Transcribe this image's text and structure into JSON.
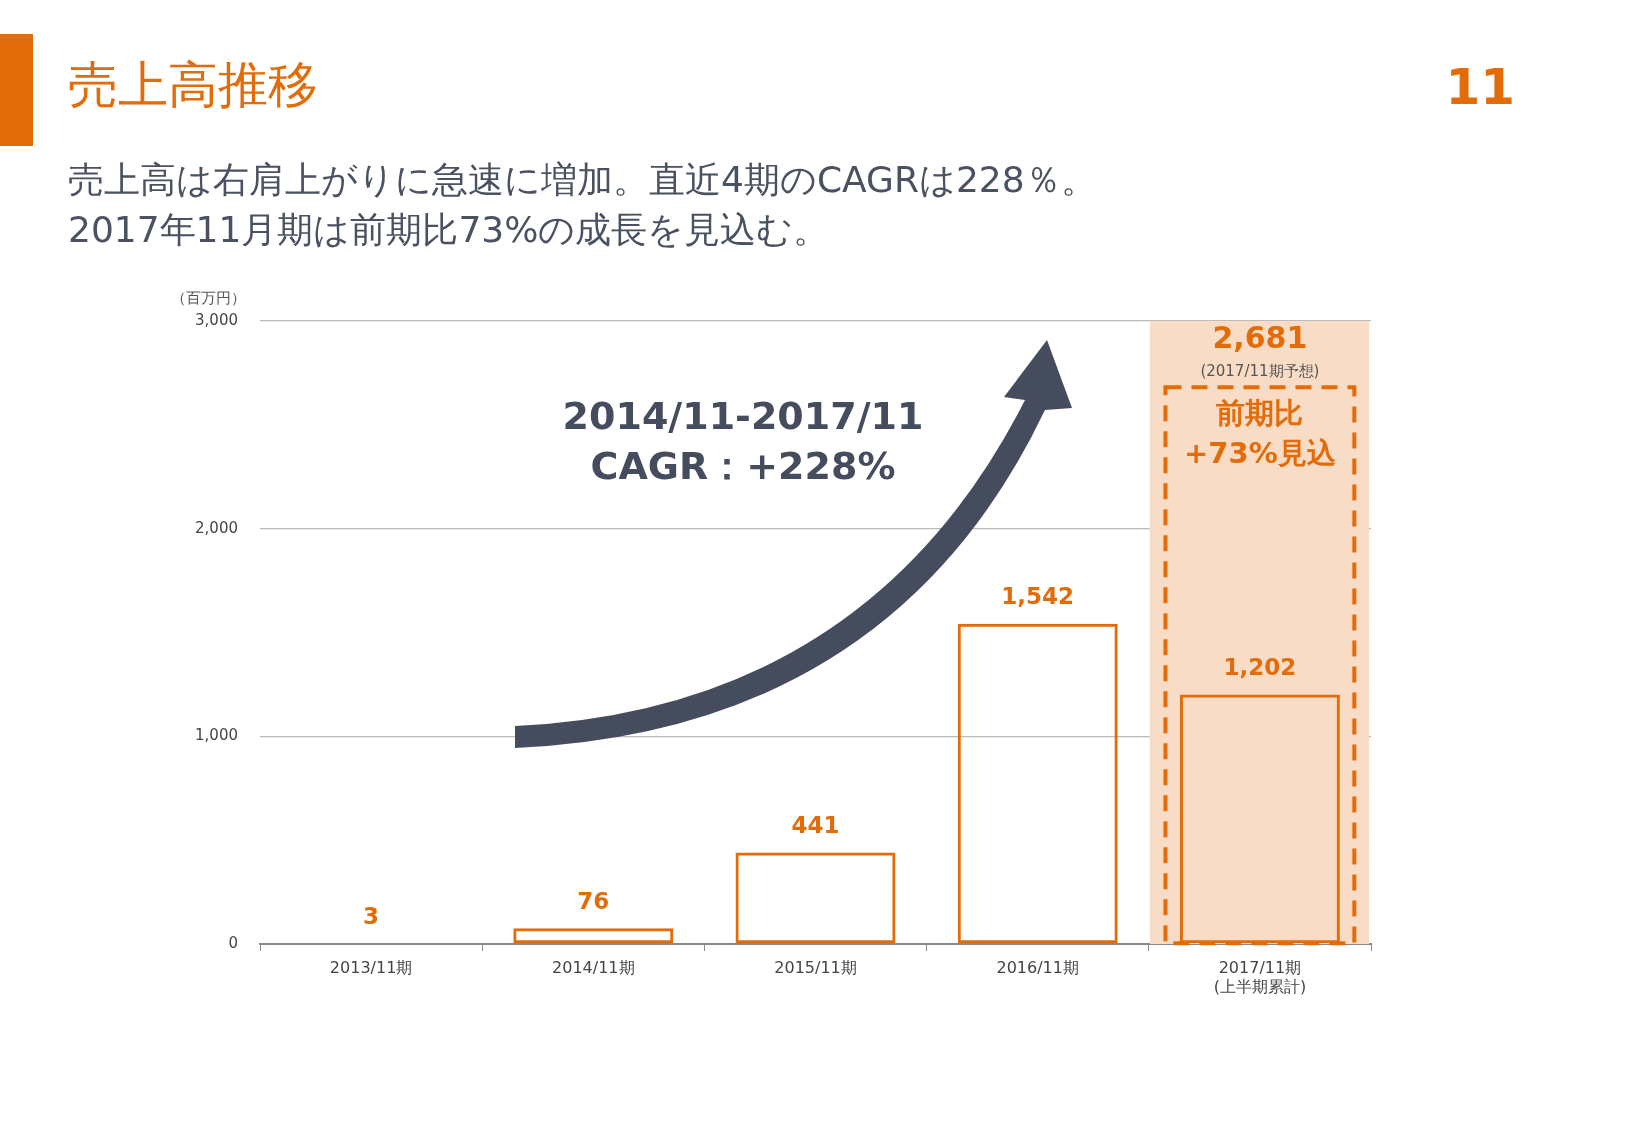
{
  "chart_data": {
    "type": "bar",
    "title": "売上高推移",
    "subtitle": "売上高は右肩上がりに急速に増加。直近4期のCAGRは228％。\n2017年11月期は前期比73%の成長を見込む。",
    "ylabel": "（百万円）",
    "categories": [
      "2013/11期",
      "2014/11期",
      "2015/11期",
      "2016/11期",
      "2017/11期\n(上半期累計)"
    ],
    "series": [
      {
        "color": "#e36c0a",
        "values": [
          3,
          76,
          441,
          1542,
          1202
        ],
        "value_labels": [
          "3",
          "76",
          "441",
          "1,542",
          "1,202"
        ]
      },
      {
        "color": "#e36c0a",
        "line_style": "dashed",
        "values": [
          null,
          null,
          null,
          null,
          2681
        ],
        "value_labels": [
          null,
          null,
          null,
          null,
          "2,681"
        ]
      }
    ],
    "ylim": [
      0,
      3000
    ],
    "yticks": [
      0,
      {
        "value": 1000,
        "label": "1,000"
      },
      {
        "value": 2000,
        "label": "2,000"
      },
      {
        "value": 3000,
        "label": "3,000"
      }
    ],
    "grid": "y",
    "legend": false,
    "bands": [
      {
        "axis": "x",
        "from": "2017/11期\n(上半期累計)",
        "to": "2017/11期\n(上半期累計)",
        "color": "#f9dcc5"
      }
    ],
    "annotations": [
      "(2017/11期予想)",
      "前期比\n+73%見込",
      "2014/11-2017/11\nCAGR：+228%",
      "11"
    ]
  }
}
